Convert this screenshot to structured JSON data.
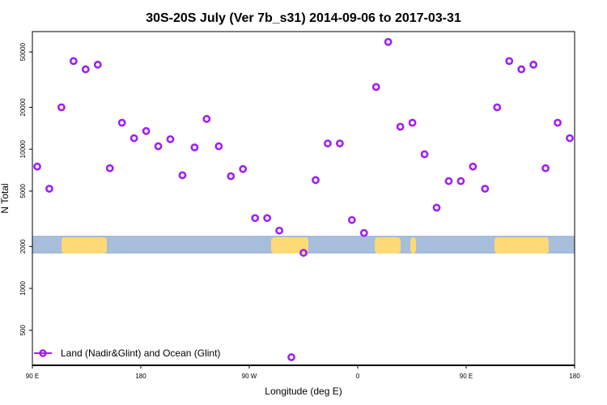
{
  "chart_data": {
    "type": "scatter",
    "title": "30S-20S July (Ver 7b_s31)   2014-09-06 to 2017-03-31",
    "xlabel": "Longitude (deg E)",
    "ylabel": "N Total",
    "yscale": "log",
    "ylim": [
      280,
      70000
    ],
    "x_tick_labels": [
      "90 E",
      "180",
      "90 W",
      "0",
      "90 E",
      "180"
    ],
    "y_tick_labels": [
      "50000",
      "20000",
      "10000",
      "5000",
      "2000",
      "1000",
      "500"
    ],
    "y_tick_values": [
      50000,
      20000,
      10000,
      5000,
      2000,
      1000,
      500
    ],
    "series": [
      {
        "name": "Land (Nadir&Glint) and Ocean (Glint)",
        "color": "#a020f0",
        "marker": "open-circle",
        "points": [
          [
            1,
            7500
          ],
          [
            2,
            5200
          ],
          [
            3,
            20000
          ],
          [
            4,
            43000
          ],
          [
            5,
            37500
          ],
          [
            6,
            40500
          ],
          [
            7,
            7300
          ],
          [
            8,
            15500
          ],
          [
            9,
            12000
          ],
          [
            10,
            13500
          ],
          [
            11,
            10500
          ],
          [
            12,
            11800
          ],
          [
            13,
            6500
          ],
          [
            14,
            10300
          ],
          [
            15,
            16500
          ],
          [
            16,
            10500
          ],
          [
            17,
            6400
          ],
          [
            18,
            7200
          ],
          [
            19,
            3200
          ],
          [
            20,
            3200
          ],
          [
            21,
            2600
          ],
          [
            22,
            320
          ],
          [
            23,
            1800
          ],
          [
            24,
            6000
          ],
          [
            25,
            11000
          ],
          [
            26,
            11000
          ],
          [
            27,
            3100
          ],
          [
            28,
            2500
          ],
          [
            29,
            28000
          ],
          [
            30,
            59000
          ],
          [
            31,
            14500
          ],
          [
            32,
            15500
          ],
          [
            33,
            9200
          ],
          [
            34,
            3800
          ],
          [
            35,
            5900
          ],
          [
            36,
            5900
          ],
          [
            37,
            7500
          ],
          [
            38,
            5200
          ],
          [
            39,
            20000
          ],
          [
            40,
            43000
          ],
          [
            41,
            37500
          ],
          [
            42,
            40500
          ],
          [
            43,
            7300
          ],
          [
            44,
            15500
          ],
          [
            45,
            12000
          ]
        ]
      }
    ],
    "legend_position": "bottom-left",
    "map_strip": {
      "ocean_color": "#a6bddb",
      "land_color": "#fed976",
      "description": "longitude land/ocean strip"
    },
    "grid": false
  }
}
